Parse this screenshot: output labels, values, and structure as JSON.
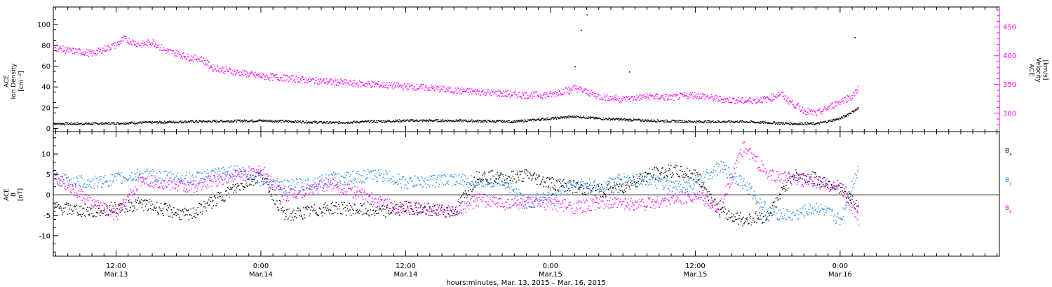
{
  "chart_data": [
    {
      "type": "scatter",
      "x_axis": {
        "label": "hours:minutes, Mar. 13, 2015 – Mar. 16, 2015",
        "ticks": [
          {
            "t": 12,
            "time": "12:00",
            "date": "Mar.13"
          },
          {
            "t": 24,
            "time": "0:00",
            "date": "Mar.14"
          },
          {
            "t": 36,
            "time": "12:00",
            "date": "Mar.14"
          },
          {
            "t": 48,
            "time": "0:00",
            "date": "Mar.15"
          },
          {
            "t": 60,
            "time": "12:00",
            "date": "Mar.15"
          },
          {
            "t": 72,
            "time": "0:00",
            "date": "Mar.16"
          }
        ],
        "range_hours": [
          6.8,
          85.2
        ]
      },
      "left_axis": {
        "label_lines": [
          "ACE",
          "Ion Density"
        ],
        "unit_base": "[cm",
        "unit_sup": "−3",
        "unit_end": "]",
        "ticks": [
          0,
          20,
          40,
          60,
          80,
          100
        ],
        "ylim": [
          -3,
          117
        ]
      },
      "right_axis": {
        "label_lines": [
          "ACE",
          "Velocity",
          "[km/s]"
        ],
        "ticks": [
          300,
          350,
          400,
          450
        ],
        "ylim": [
          268,
          485
        ]
      },
      "series": [
        {
          "axis": "left",
          "color": "#000000",
          "x": [
            6.8,
            10,
            14,
            18,
            24,
            30,
            36,
            40,
            45,
            48,
            50,
            52,
            54,
            56,
            60,
            64,
            68,
            70,
            72,
            73.5
          ],
          "y": [
            5,
            5,
            6,
            7,
            8,
            6,
            8,
            8,
            7,
            10,
            12,
            10,
            9,
            8,
            7,
            7,
            5,
            5,
            10,
            20
          ],
          "spike_x": [
            49.5,
            50,
            50.5,
            51,
            54.5,
            73.2
          ],
          "spike_y": [
            34,
            60,
            95,
            110,
            55,
            88
          ]
        },
        {
          "axis": "right",
          "color": "#ff00ff",
          "x": [
            6.8,
            8,
            10,
            12,
            12.6,
            14,
            15,
            16,
            17,
            18,
            19,
            20,
            22,
            24,
            26,
            28,
            30,
            32,
            34,
            36,
            38,
            40,
            42,
            44,
            46,
            48,
            50,
            52,
            54,
            56,
            58,
            60,
            62,
            64,
            66,
            67,
            68,
            69,
            70,
            71,
            72,
            73,
            73.5
          ],
          "y": [
            415,
            410,
            405,
            420,
            430,
            420,
            425,
            410,
            405,
            398,
            395,
            380,
            372,
            365,
            362,
            358,
            355,
            352,
            350,
            347,
            345,
            340,
            338,
            335,
            332,
            333,
            345,
            330,
            325,
            330,
            328,
            333,
            325,
            322,
            325,
            335,
            318,
            305,
            300,
            310,
            322,
            330,
            345
          ]
        }
      ]
    },
    {
      "type": "scatter",
      "y_axis": {
        "label_lines": [
          "ACE",
          "B",
          "[nT]"
        ],
        "ticks": [
          -10,
          -5,
          0,
          5,
          10
        ],
        "ylim": [
          -15,
          15.5
        ]
      },
      "zero_line": 0,
      "series": [
        {
          "name_base": "B",
          "name_sub": "x",
          "color": "#000000",
          "x": [
            6.8,
            10,
            14,
            18,
            22,
            24,
            26,
            30,
            34,
            36,
            40,
            42,
            44,
            46,
            48,
            50,
            52,
            54,
            56,
            58,
            60,
            62,
            64,
            66,
            68,
            70,
            72,
            73.5
          ],
          "y": [
            -3,
            -4,
            -2,
            -5,
            2,
            5,
            -5,
            -3,
            -4,
            -3,
            -4,
            5,
            4,
            5,
            3,
            2,
            1,
            2,
            5,
            6,
            5,
            -4,
            -6,
            -5,
            5,
            4,
            2,
            -3
          ]
        },
        {
          "name_base": "B",
          "name_sub": "y",
          "color": "#1e88e5",
          "x": [
            6.8,
            10,
            14,
            18,
            22,
            24,
            26,
            30,
            34,
            36,
            40,
            42,
            44,
            46,
            48,
            50,
            52,
            54,
            56,
            58,
            60,
            62,
            64,
            66,
            68,
            70,
            72,
            73.5
          ],
          "y": [
            4,
            3,
            5,
            4,
            6,
            4,
            2,
            4,
            5,
            3,
            4,
            3,
            4,
            -2,
            0,
            3,
            2,
            4,
            4,
            2,
            3,
            7,
            3,
            -4,
            -5,
            -3,
            -6,
            7
          ]
        },
        {
          "name_base": "B",
          "name_sub": "z",
          "color": "#ff00ff",
          "x": [
            6.8,
            10,
            12,
            14,
            18,
            22,
            24,
            26,
            30,
            34,
            36,
            40,
            42,
            44,
            46,
            48,
            50,
            52,
            54,
            56,
            58,
            60,
            62,
            64,
            66,
            68,
            70,
            72,
            73.5
          ],
          "y": [
            5,
            -2,
            -5,
            4,
            2,
            5,
            6,
            0,
            3,
            -2,
            -3,
            -4,
            -1,
            -2,
            -2,
            -2,
            -3,
            -2,
            -2,
            -2,
            -1,
            0,
            -3,
            12,
            5,
            4,
            3,
            2,
            -6
          ]
        }
      ]
    }
  ]
}
